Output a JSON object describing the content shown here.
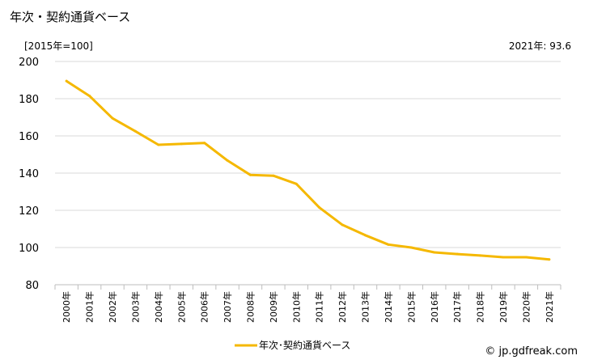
{
  "chart_data": {
    "type": "line",
    "title": "年次・契約通貨ベース",
    "unit_label": "[2015年=100]",
    "latest_label": "2021年: 93.6",
    "categories": [
      "2000年",
      "2001年",
      "2002年",
      "2003年",
      "2004年",
      "2005年",
      "2006年",
      "2007年",
      "2008年",
      "2009年",
      "2010年",
      "2011年",
      "2012年",
      "2013年",
      "2014年",
      "2015年",
      "2016年",
      "2017年",
      "2018年",
      "2019年",
      "2020年",
      "2021年"
    ],
    "series": [
      {
        "name": "年次･契約通貨ベース",
        "values": [
          189.5,
          181.5,
          169.5,
          162.5,
          155.2,
          155.7,
          156.2,
          146.8,
          139.0,
          138.6,
          134.2,
          121.5,
          112.2,
          106.6,
          101.6,
          100.0,
          97.4,
          96.5,
          95.7,
          94.8,
          94.8,
          93.6
        ]
      }
    ],
    "y_ticks": [
      80,
      100,
      120,
      140,
      160,
      180,
      200
    ],
    "ylim": [
      80,
      200
    ],
    "grid": true,
    "legend_position": "bottom-center",
    "line_color": "#f5b800",
    "grid_color": "#d9d9d9"
  },
  "footer": {
    "credit": "© jp.gdfreak.com"
  }
}
